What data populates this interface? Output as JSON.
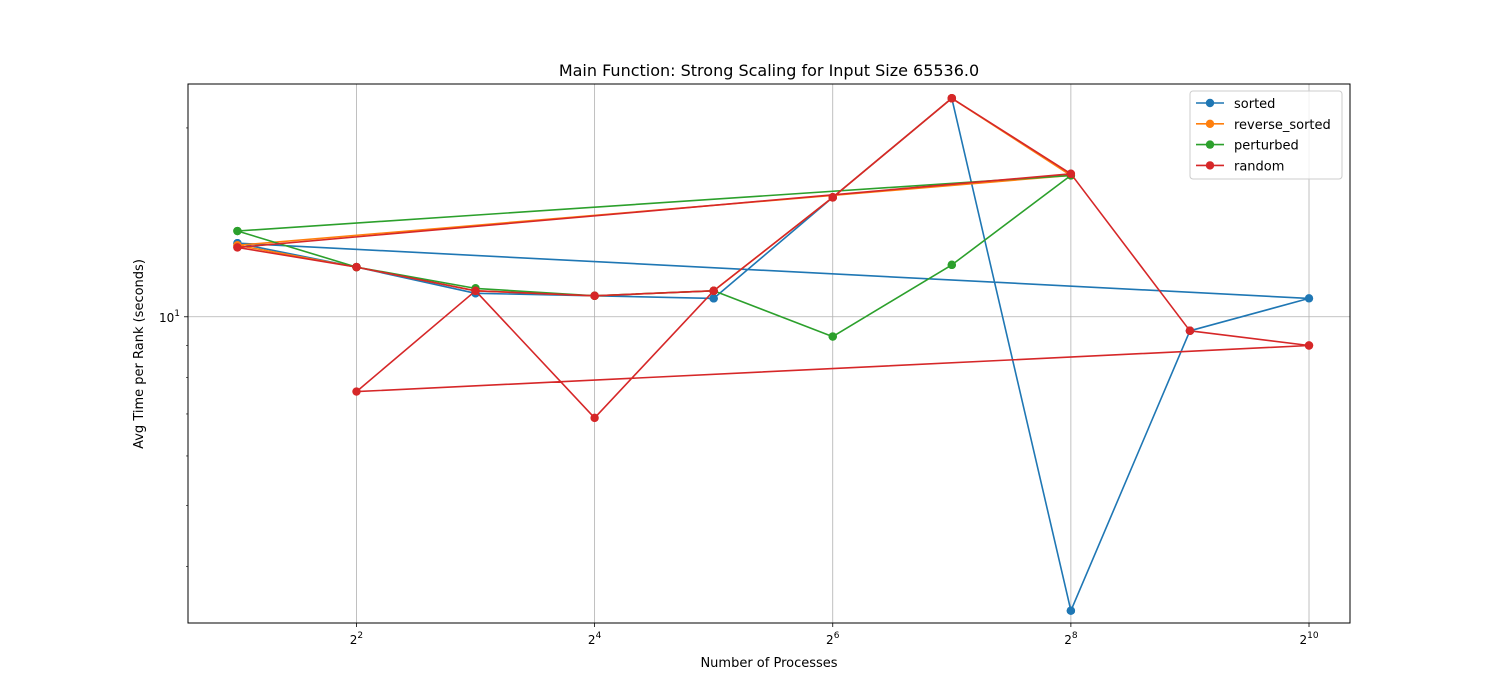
{
  "chart_data": {
    "type": "line",
    "title": "Main Function: Strong Scaling for Input Size 65536.0",
    "xlabel": "Number of Processes",
    "ylabel": "Avg Time per Rank (seconds)",
    "x_scale": "log2",
    "y_scale": "log10",
    "xlim": [
      1.5,
      1300
    ],
    "ylim": [
      3.25,
      23.5
    ],
    "x_ticks": [
      {
        "value": 4,
        "base": "2",
        "exp": "2"
      },
      {
        "value": 16,
        "base": "2",
        "exp": "4"
      },
      {
        "value": 64,
        "base": "2",
        "exp": "6"
      },
      {
        "value": 256,
        "base": "2",
        "exp": "8"
      },
      {
        "value": 1024,
        "base": "2",
        "exp": "10"
      }
    ],
    "y_ticks": [
      {
        "value": 10,
        "base": "10",
        "exp": "1"
      }
    ],
    "grid": true,
    "legend_position": "top-right",
    "series": [
      {
        "name": "sorted",
        "color": "#1f77b4",
        "x": [
          2,
          4,
          8,
          16,
          32,
          64,
          128,
          256,
          512,
          1024,
          2,
          4,
          8,
          16,
          32,
          64,
          128,
          256,
          512
        ],
        "y": [
          13.1,
          12.0,
          10.9,
          10.8,
          10.7,
          15.5,
          22.3,
          3.4,
          9.5,
          10.7,
          13.1,
          12.0,
          10.9,
          10.8,
          10.7,
          15.5,
          22.3,
          3.4,
          9.5
        ]
      },
      {
        "name": "reverse_sorted",
        "color": "#ff7f0e",
        "x": [
          2,
          4,
          8,
          16,
          32,
          64,
          128,
          256,
          2,
          4,
          8,
          16,
          32,
          64,
          128,
          256
        ],
        "y": [
          13.0,
          12.0,
          11.0,
          10.8,
          11.0,
          15.5,
          22.3,
          16.8,
          13.0,
          12.0,
          11.0,
          10.8,
          11.0,
          15.5,
          22.3,
          16.8
        ]
      },
      {
        "name": "perturbed",
        "color": "#2ca02c",
        "x": [
          2,
          4,
          8,
          16,
          32,
          64,
          128,
          256,
          2,
          4,
          8,
          16,
          32,
          64,
          128,
          256
        ],
        "y": [
          13.7,
          12.0,
          11.1,
          10.8,
          11.0,
          9.3,
          12.1,
          16.8,
          13.7,
          12.0,
          11.1,
          10.8,
          11.0,
          9.3,
          12.1,
          16.8
        ]
      },
      {
        "name": "random",
        "color": "#d62728",
        "x": [
          2,
          4,
          8,
          16,
          32,
          64,
          128,
          256,
          512,
          1024,
          4,
          8,
          16,
          32,
          64,
          128,
          256,
          2,
          4,
          8,
          16,
          32,
          64,
          128,
          256,
          512,
          1024
        ],
        "y": [
          12.9,
          12.0,
          11.0,
          10.8,
          11.0,
          15.5,
          22.3,
          16.9,
          9.5,
          9.0,
          7.6,
          11.0,
          6.9,
          11.0,
          15.5,
          22.3,
          16.9,
          12.9,
          12.0,
          11.0,
          10.8,
          11.0,
          15.5,
          22.3,
          16.9,
          9.5,
          9.0
        ]
      }
    ]
  }
}
